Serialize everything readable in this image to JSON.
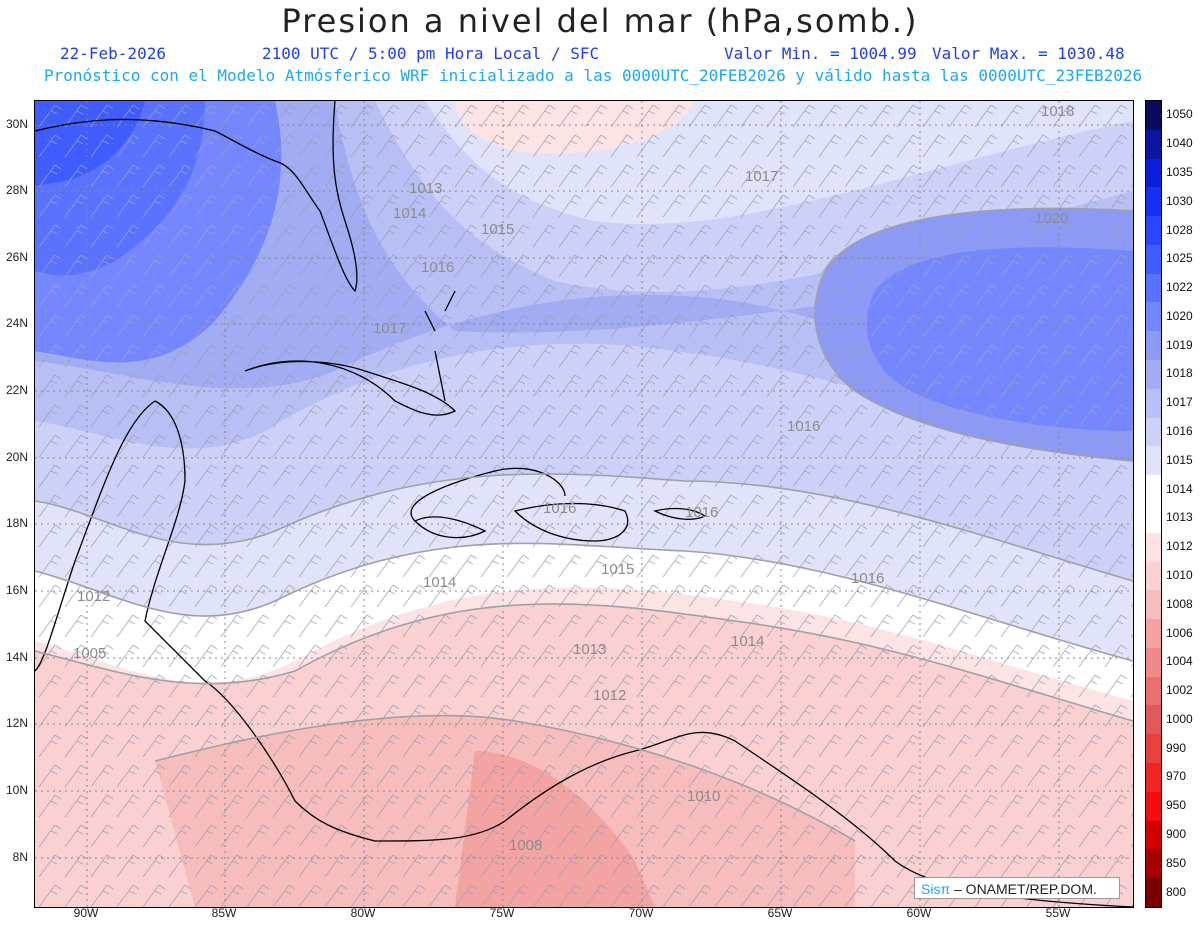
{
  "title": "Presion a nivel del mar (hPa,somb.)",
  "header": {
    "date": "22-Feb-2026",
    "time": "2100 UTC / 5:00 pm Hora Local / SFC",
    "min": "Valor Min. = 1004.99",
    "max": "Valor Max. = 1030.48",
    "model": "Pronóstico con el Modelo Atmósferico WRF inicializado a las 0000UTC_20FEB2026 y válido hasta las  0000UTC_23FEB2026"
  },
  "axes": {
    "lat": [
      "30N",
      "28N",
      "26N",
      "24N",
      "22N",
      "20N",
      "18N",
      "16N",
      "14N",
      "12N",
      "10N",
      "8N"
    ],
    "lon": [
      "90W",
      "85W",
      "80W",
      "75W",
      "70W",
      "65W",
      "60W",
      "55W"
    ]
  },
  "contour_labels": [
    {
      "text": "1018"
    },
    {
      "text": "1017"
    },
    {
      "text": "1020"
    },
    {
      "text": "1013"
    },
    {
      "text": "1014"
    },
    {
      "text": "1015"
    },
    {
      "text": "1016"
    },
    {
      "text": "1017"
    },
    {
      "text": "1016"
    },
    {
      "text": "1016"
    },
    {
      "text": "1016"
    },
    {
      "text": "1015"
    },
    {
      "text": "1016"
    },
    {
      "text": "1014"
    },
    {
      "text": "1014"
    },
    {
      "text": "1013"
    },
    {
      "text": "1012"
    },
    {
      "text": "1010"
    },
    {
      "text": "1008"
    },
    {
      "text": "1005"
    },
    {
      "text": "1012"
    }
  ],
  "colorbar": {
    "levels": [
      "1050",
      "1040",
      "1035",
      "1030",
      "1028",
      "1025",
      "1022",
      "1020",
      "1019",
      "1018",
      "1017",
      "1016",
      "1015",
      "1014",
      "1013",
      "1012",
      "1010",
      "1008",
      "1006",
      "1004",
      "1002",
      "1000",
      "990",
      "970",
      "950",
      "900",
      "850",
      "800"
    ],
    "colors": [
      "#0b0b5e",
      "#0c14a0",
      "#0a20d8",
      "#1430f0",
      "#2a46ff",
      "#3f5cff",
      "#5a73ff",
      "#7487ff",
      "#8c99f5",
      "#a2acf2",
      "#b8bff4",
      "#cdd1f7",
      "#e1e3fa",
      "#ffffff",
      "#ffffff",
      "#fde3e3",
      "#fad0d0",
      "#f7bcbc",
      "#f4a3a3",
      "#ee8a8a",
      "#e87070",
      "#e25757",
      "#e84040",
      "#f02525",
      "#f20e0e",
      "#d20000",
      "#a80000",
      "#7a0000"
    ]
  },
  "credit": {
    "brand": "Sisπ",
    "org": " – ONAMET/REP.DOM."
  }
}
